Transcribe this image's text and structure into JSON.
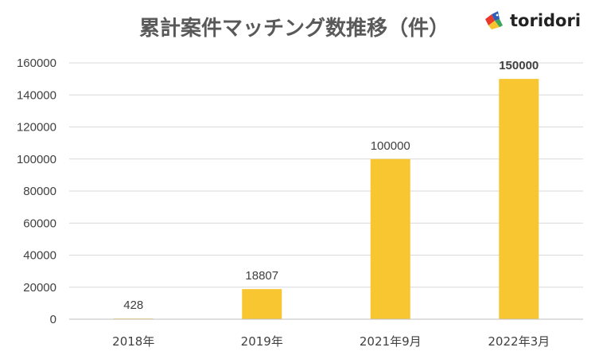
{
  "brand": {
    "name": "toridori"
  },
  "chart_data": {
    "type": "bar",
    "title": "累計案件マッチング数推移（件）",
    "categories": [
      "2018年",
      "2019年",
      "2021年9月",
      "2022年3月"
    ],
    "values": [
      428,
      18807,
      100000,
      150000
    ],
    "data_labels": [
      "428",
      "18807",
      "100000",
      "150000"
    ],
    "bold_labels": [
      false,
      false,
      false,
      true
    ],
    "ylim": [
      0,
      160000
    ],
    "yticks": [
      0,
      20000,
      40000,
      60000,
      80000,
      100000,
      120000,
      140000,
      160000
    ],
    "xlabel": "",
    "ylabel": "",
    "grid": true,
    "legend": "none",
    "bar_color": "#F8C630",
    "grid_color": "#D9D9D9"
  }
}
